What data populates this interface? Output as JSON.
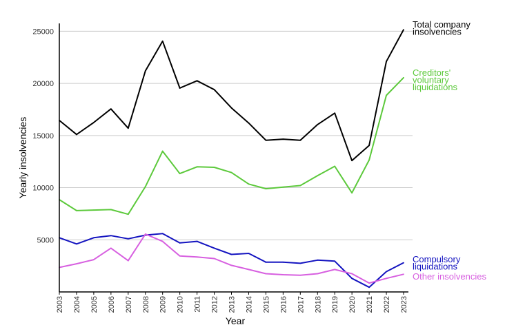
{
  "chart_data": {
    "type": "line",
    "title": "",
    "xlabel": "Year",
    "ylabel": "Yearly insolvencies",
    "grid": true,
    "x": [
      2003,
      2004,
      2005,
      2006,
      2007,
      2008,
      2009,
      2010,
      2011,
      2012,
      2013,
      2014,
      2015,
      2016,
      2017,
      2018,
      2019,
      2020,
      2021,
      2022,
      2023
    ],
    "xlim": [
      2003,
      2023
    ],
    "ylim": [
      0,
      26000
    ],
    "yticks": [
      5000,
      10000,
      15000,
      20000,
      25000
    ],
    "series": [
      {
        "name": "Total company insolvencies",
        "label_lines": [
          "Total company",
          "insolvencies"
        ],
        "color": "#000000",
        "values": [
          16450,
          15100,
          16250,
          17550,
          15700,
          21200,
          24050,
          19550,
          20250,
          19400,
          17650,
          16200,
          14550,
          14650,
          14550,
          16050,
          17150,
          12600,
          14050,
          22100,
          25150
        ]
      },
      {
        "name": "Creditors' voluntary liquidations",
        "label_lines": [
          "Creditors'",
          "voluntary",
          "liquidations"
        ],
        "color": "#5cc93b",
        "values": [
          8850,
          7800,
          7850,
          7900,
          7450,
          10100,
          13500,
          11350,
          12000,
          11950,
          11450,
          10350,
          9900,
          10050,
          10200,
          11150,
          12050,
          9500,
          12650,
          18850,
          20550
        ]
      },
      {
        "name": "Compulsory liquidations",
        "label_lines": [
          "Compulsory",
          "liquidations"
        ],
        "color": "#1414c0",
        "values": [
          5200,
          4600,
          5200,
          5400,
          5100,
          5450,
          5600,
          4700,
          4850,
          4200,
          3600,
          3700,
          2850,
          2850,
          2750,
          3050,
          2950,
          1300,
          450,
          1950,
          2800
        ]
      },
      {
        "name": "Other insolvencies",
        "label_lines": [
          "Other insolvencies"
        ],
        "color": "#d75fe0",
        "values": [
          2350,
          2700,
          3100,
          4200,
          3000,
          5550,
          4850,
          3450,
          3350,
          3200,
          2550,
          2150,
          1750,
          1650,
          1600,
          1750,
          2150,
          1750,
          850,
          1300,
          1700
        ]
      }
    ]
  }
}
